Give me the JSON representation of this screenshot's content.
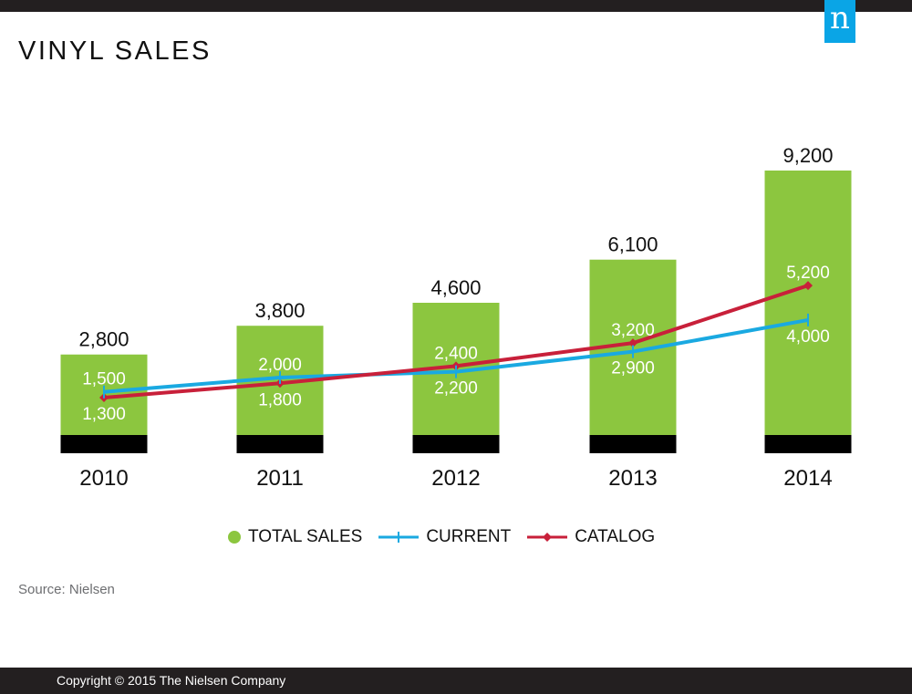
{
  "header": {
    "title": "VINYL SALES",
    "logo_text": "n"
  },
  "colors": {
    "total": "#8cc63f",
    "current": "#1aa9e1",
    "catalog": "#c8203a",
    "base_band": "#000000",
    "logo_bg": "#0aa5e6"
  },
  "chart_data": {
    "type": "bar",
    "title": "VINYL SALES",
    "xlabel": "",
    "ylabel": "",
    "ylim": [
      0,
      9200
    ],
    "grid": false,
    "legend_position": "bottom",
    "categories": [
      "2010",
      "2011",
      "2012",
      "2013",
      "2014"
    ],
    "series": [
      {
        "name": "TOTAL SALES",
        "type": "bar",
        "values": [
          2800,
          3800,
          4600,
          6100,
          9200
        ],
        "labels": [
          "2,800",
          "3,800",
          "4,600",
          "6,100",
          "9,200"
        ]
      },
      {
        "name": "CURRENT",
        "type": "line",
        "marker": "plus",
        "values": [
          1500,
          2000,
          2200,
          2900,
          4000
        ],
        "labels": [
          "1,500",
          "2,000",
          "2,200",
          "2,900",
          "4,000"
        ]
      },
      {
        "name": "CATALOG",
        "type": "line",
        "marker": "diamond",
        "values": [
          1300,
          1800,
          2400,
          3200,
          5200
        ],
        "labels": [
          "1,300",
          "1,800",
          "2,400",
          "3,200",
          "5,200"
        ]
      }
    ]
  },
  "legend": {
    "total": "TOTAL SALES",
    "current": "CURRENT",
    "catalog": "CATALOG"
  },
  "source": "Source: Nielsen",
  "footer": {
    "copyright": "Copyright © 2015 The Nielsen Company"
  }
}
